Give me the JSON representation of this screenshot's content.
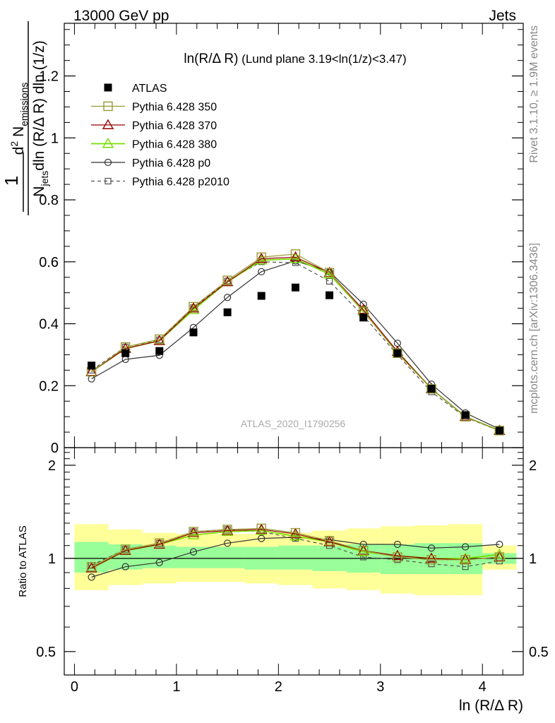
{
  "header": {
    "left": "13000 GeV pp",
    "right": "Jets",
    "side_top": "Rivet 3.1.10, ≥ 1.9M events",
    "side_bottom": "mcplots.cern.ch [arXiv:1306.3436]"
  },
  "colors": {
    "atlas": "#000000",
    "p350": "#999933",
    "p370": "#990000",
    "p380": "#77dd00",
    "p0": "#333333",
    "p2010": "#555555",
    "band_outer": "#ffff99",
    "band_inner": "#99ff99"
  },
  "chart_data": [
    {
      "type": "line",
      "title_main": "ln(R/Δ R)",
      "title_rest": " (Lund plane 3.19<ln(1/z)<3.47)",
      "watermark": "ATLAS_2020_I1790256",
      "ylabel_frac_one": "1",
      "ylabel_N": "N",
      "ylabel_jets": "jets",
      "ylabel_den_rest": "dln (R/Δ R) dln (1/z)",
      "ylabel_d2": "d",
      "ylabel_sq": "2",
      "ylabel_Nnum": " N",
      "ylabel_emissions": "emissions",
      "xlim": [
        -0.1,
        4.4
      ],
      "ylim": [
        0,
        1.37
      ],
      "yticks": [
        0,
        0.2,
        0.4,
        0.6,
        0.8,
        1,
        1.2
      ],
      "ytick_labels": [
        "0",
        "0.2",
        "0.4",
        "0.6",
        "0.8",
        "1",
        "1.2"
      ],
      "legend_placement": "top-left",
      "x": [
        0.167,
        0.5,
        0.833,
        1.167,
        1.5,
        1.833,
        2.167,
        2.5,
        2.833,
        3.167,
        3.5,
        3.833,
        4.167
      ],
      "series": [
        {
          "name": "ATLAS",
          "key": "atlas",
          "marker": "filled-square",
          "line": "none",
          "values": [
            0.265,
            0.305,
            0.312,
            0.372,
            0.437,
            0.49,
            0.517,
            0.492,
            0.42,
            0.305,
            0.19,
            0.105,
            0.055
          ]
        },
        {
          "name": "Pythia 6.428 350",
          "key": "p350",
          "marker": "open-square",
          "line": "solid",
          "values": [
            0.245,
            0.325,
            0.35,
            0.455,
            0.54,
            0.615,
            0.625,
            0.565,
            0.44,
            0.305,
            0.19,
            0.1,
            0.055
          ]
        },
        {
          "name": "Pythia 6.428 370",
          "key": "p370",
          "marker": "open-triangle",
          "line": "solid",
          "values": [
            0.245,
            0.32,
            0.345,
            0.45,
            0.535,
            0.61,
            0.615,
            0.565,
            0.445,
            0.31,
            0.19,
            0.1,
            0.055
          ]
        },
        {
          "name": "Pythia 6.428 380",
          "key": "p380",
          "marker": "open-triangle",
          "line": "solid",
          "values": [
            0.245,
            0.32,
            0.345,
            0.445,
            0.535,
            0.605,
            0.61,
            0.56,
            0.44,
            0.31,
            0.19,
            0.1,
            0.055
          ]
        },
        {
          "name": "Pythia 6.428 p0",
          "key": "p0",
          "marker": "open-circle",
          "line": "solid",
          "values": [
            0.222,
            0.285,
            0.298,
            0.388,
            0.485,
            0.568,
            0.603,
            0.568,
            0.463,
            0.337,
            0.205,
            0.112,
            0.06
          ]
        },
        {
          "name": "Pythia 6.428 p2010",
          "key": "p2010",
          "marker": "open-square-small",
          "line": "dashed",
          "values": [
            0.25,
            0.325,
            0.348,
            0.452,
            0.538,
            0.6,
            0.597,
            0.537,
            0.425,
            0.3,
            0.18,
            0.098,
            0.054
          ]
        }
      ]
    },
    {
      "type": "line",
      "ylabel": "Ratio to ATLAS",
      "xlabel": "ln (R/Δ R)",
      "xticks": [
        0,
        1,
        2,
        3,
        4
      ],
      "xtick_labels": [
        "0",
        "1",
        "2",
        "3",
        "4"
      ],
      "ylim": [
        0.42,
        2.28
      ],
      "yticks": [
        0.5,
        1,
        2
      ],
      "ytick_labels": [
        "0.5",
        "1",
        "2"
      ],
      "band_edges": [
        0,
        0.333,
        0.667,
        1,
        1.333,
        1.667,
        2,
        2.333,
        2.667,
        3,
        3.333,
        3.667,
        4,
        4.333
      ],
      "band_outer": [
        [
          0.79,
          1.29
        ],
        [
          0.82,
          1.24
        ],
        [
          0.83,
          1.21
        ],
        [
          0.84,
          1.2
        ],
        [
          0.84,
          1.2
        ],
        [
          0.83,
          1.2
        ],
        [
          0.82,
          1.21
        ],
        [
          0.8,
          1.23
        ],
        [
          0.79,
          1.25
        ],
        [
          0.77,
          1.27
        ],
        [
          0.76,
          1.28
        ],
        [
          0.76,
          1.29
        ],
        [
          0.92,
          1.1
        ]
      ],
      "band_inner": [
        [
          0.9,
          1.13
        ],
        [
          0.92,
          1.11
        ],
        [
          0.93,
          1.1
        ],
        [
          0.93,
          1.09
        ],
        [
          0.93,
          1.09
        ],
        [
          0.92,
          1.09
        ],
        [
          0.92,
          1.1
        ],
        [
          0.91,
          1.1
        ],
        [
          0.9,
          1.11
        ],
        [
          0.89,
          1.11
        ],
        [
          0.89,
          1.12
        ],
        [
          0.89,
          1.12
        ],
        [
          0.96,
          1.04
        ]
      ],
      "series": [
        {
          "name": "Pythia 6.428 350",
          "key": "p350",
          "marker": "open-square",
          "line": "solid",
          "values": [
            0.94,
            1.07,
            1.12,
            1.22,
            1.24,
            1.25,
            1.21,
            1.14,
            1.06,
            1.01,
            0.99,
            0.99,
            1.01
          ]
        },
        {
          "name": "Pythia 6.428 370",
          "key": "p370",
          "marker": "open-triangle",
          "line": "solid",
          "values": [
            0.93,
            1.06,
            1.11,
            1.21,
            1.23,
            1.24,
            1.2,
            1.13,
            1.06,
            1.02,
            1.0,
            0.99,
            1.01
          ]
        },
        {
          "name": "Pythia 6.428 380",
          "key": "p380",
          "marker": "open-triangle",
          "line": "solid",
          "values": [
            0.93,
            1.06,
            1.11,
            1.19,
            1.22,
            1.23,
            1.18,
            1.13,
            1.05,
            1.02,
            1.0,
            1.0,
            1.03
          ]
        },
        {
          "name": "Pythia 6.428 p0",
          "key": "p0",
          "marker": "open-circle",
          "line": "solid",
          "values": [
            0.87,
            0.94,
            0.97,
            1.05,
            1.12,
            1.16,
            1.17,
            1.15,
            1.11,
            1.11,
            1.08,
            1.09,
            1.11
          ]
        },
        {
          "name": "Pythia 6.428 p2010",
          "key": "p2010",
          "marker": "open-square-small",
          "line": "dashed",
          "values": [
            0.95,
            1.07,
            1.12,
            1.22,
            1.24,
            1.22,
            1.16,
            1.1,
            1.01,
            0.99,
            0.96,
            0.94,
            0.98
          ]
        }
      ]
    }
  ]
}
